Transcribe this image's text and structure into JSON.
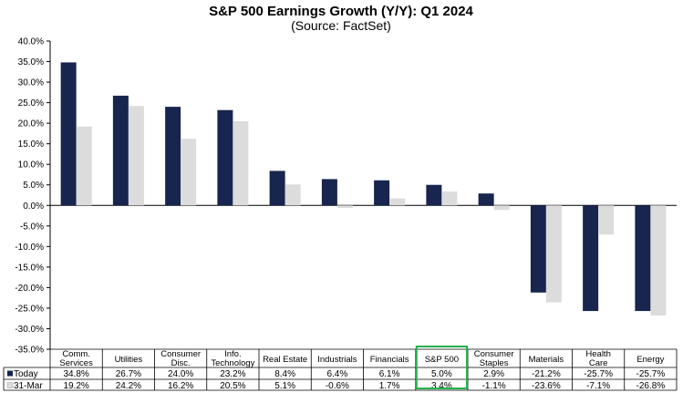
{
  "chart_data": {
    "type": "bar",
    "title": "S&P 500 Earnings Growth (Y/Y): Q1 2024",
    "subtitle": "(Source: FactSet)",
    "categories": [
      [
        "Comm.",
        "Services"
      ],
      [
        "Utilities"
      ],
      [
        "Consumer",
        "Disc."
      ],
      [
        "Info.",
        "Technology"
      ],
      [
        "Real Estate"
      ],
      [
        "Industrials"
      ],
      [
        "Financials"
      ],
      [
        "S&P 500"
      ],
      [
        "Consumer",
        "Staples"
      ],
      [
        "Materials"
      ],
      [
        "Health",
        "Care"
      ],
      [
        "Energy"
      ]
    ],
    "series": [
      {
        "name": "Today",
        "color": "#17254f",
        "values": [
          34.8,
          26.7,
          24.0,
          23.2,
          8.4,
          6.4,
          6.1,
          5.0,
          2.9,
          -21.2,
          -25.7,
          -25.7
        ],
        "labels": [
          "34.8%",
          "26.7%",
          "24.0%",
          "23.2%",
          "8.4%",
          "6.4%",
          "6.1%",
          "5.0%",
          "2.9%",
          "-21.2%",
          "-25.7%",
          "-25.7%"
        ]
      },
      {
        "name": "31-Mar",
        "color": "#dcdcdc",
        "values": [
          19.2,
          24.2,
          16.2,
          20.5,
          5.1,
          -0.6,
          1.7,
          3.4,
          -1.1,
          -23.6,
          -7.1,
          -26.8
        ],
        "labels": [
          "19.2%",
          "24.2%",
          "16.2%",
          "20.5%",
          "5.1%",
          "-0.6%",
          "1.7%",
          "3.4%",
          "-1.1%",
          "-23.6%",
          "-7.1%",
          "-26.8%"
        ]
      }
    ],
    "ylim": [
      -35,
      40
    ],
    "ytick_step": 5,
    "ytick_labels": [
      "40.0%",
      "35.0%",
      "30.0%",
      "25.0%",
      "20.0%",
      "15.0%",
      "10.0%",
      "5.0%",
      "0.0%",
      "-5.0%",
      "-10.0%",
      "-15.0%",
      "-20.0%",
      "-25.0%",
      "-30.0%",
      "-35.0%"
    ],
    "grid": false,
    "legend": "data-table",
    "highlight_category": "S&P 500",
    "highlight_color": "#22b14c"
  }
}
